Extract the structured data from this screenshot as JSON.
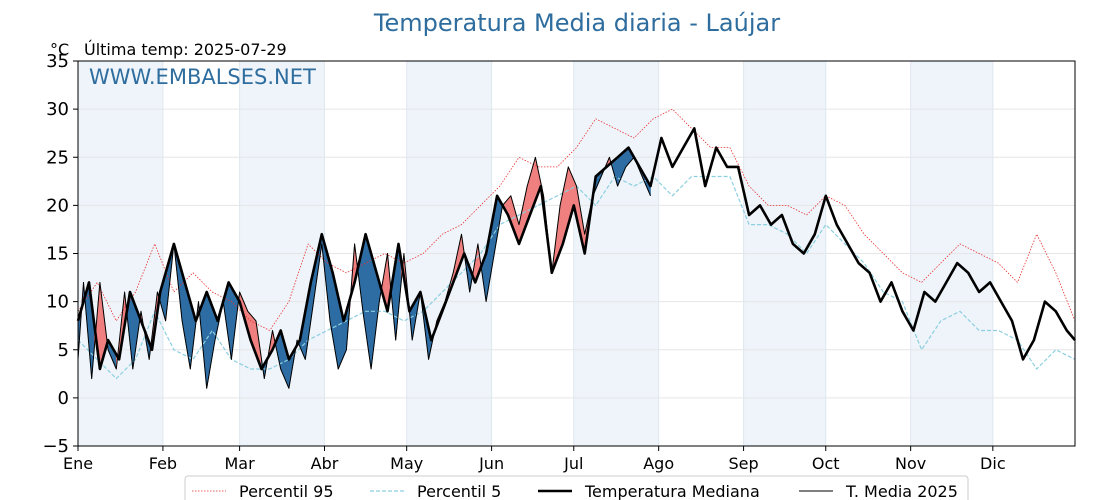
{
  "chart_data": {
    "type": "line",
    "title": "Temperatura Media diaria - Laújar",
    "unit_label": "°C",
    "subtitle": "Última temp: 2025-07-29",
    "watermark": "WWW.EMBALSES.NET",
    "ylim": [
      -5,
      35
    ],
    "yticks": [
      -5,
      0,
      5,
      10,
      15,
      20,
      25,
      30,
      35
    ],
    "ytick_labels": [
      "−5",
      "0",
      "5",
      "10",
      "15",
      "20",
      "25",
      "30",
      "35"
    ],
    "xlim_day": [
      1,
      365
    ],
    "month_ticks": [
      {
        "label": "Ene",
        "day": 1
      },
      {
        "label": "Feb",
        "day": 32
      },
      {
        "label": "Mar",
        "day": 60
      },
      {
        "label": "Abr",
        "day": 91
      },
      {
        "label": "May",
        "day": 121
      },
      {
        "label": "Jun",
        "day": 152
      },
      {
        "label": "Jul",
        "day": 182
      },
      {
        "label": "Ago",
        "day": 213
      },
      {
        "label": "Sep",
        "day": 244
      },
      {
        "label": "Oct",
        "day": 274
      },
      {
        "label": "Nov",
        "day": 305
      },
      {
        "label": "Dic",
        "day": 335
      }
    ],
    "last_day_2025": 210,
    "grid": true,
    "legend_position": "bottom",
    "colors": {
      "p95": "#e8312f",
      "p5": "#8ccfe0",
      "median": "#000000",
      "current": "#000000",
      "above": "#f08080",
      "below": "#2e6da4",
      "band": "#eef4fa",
      "title": "#2e6d9e"
    },
    "series": [
      {
        "key": "p95",
        "name": "Percentil 95",
        "style": "dotted",
        "points": [
          [
            1,
            9
          ],
          [
            8,
            12
          ],
          [
            15,
            8
          ],
          [
            22,
            11
          ],
          [
            29,
            16
          ],
          [
            36,
            11
          ],
          [
            43,
            13
          ],
          [
            50,
            11
          ],
          [
            57,
            10
          ],
          [
            64,
            8
          ],
          [
            71,
            7
          ],
          [
            78,
            10
          ],
          [
            85,
            16
          ],
          [
            92,
            14
          ],
          [
            99,
            13
          ],
          [
            106,
            14
          ],
          [
            113,
            15
          ],
          [
            120,
            14
          ],
          [
            127,
            15
          ],
          [
            134,
            17
          ],
          [
            141,
            18
          ],
          [
            148,
            20
          ],
          [
            155,
            22
          ],
          [
            162,
            25
          ],
          [
            169,
            24
          ],
          [
            176,
            24
          ],
          [
            183,
            26
          ],
          [
            190,
            29
          ],
          [
            197,
            28
          ],
          [
            204,
            27
          ],
          [
            211,
            29
          ],
          [
            218,
            30
          ],
          [
            225,
            28
          ],
          [
            232,
            26
          ],
          [
            239,
            26
          ],
          [
            246,
            22
          ],
          [
            253,
            20
          ],
          [
            260,
            20
          ],
          [
            267,
            19
          ],
          [
            274,
            21
          ],
          [
            281,
            20
          ],
          [
            288,
            17
          ],
          [
            295,
            15
          ],
          [
            302,
            13
          ],
          [
            309,
            12
          ],
          [
            316,
            14
          ],
          [
            323,
            16
          ],
          [
            330,
            15
          ],
          [
            337,
            14
          ],
          [
            344,
            12
          ],
          [
            351,
            17
          ],
          [
            358,
            13
          ],
          [
            365,
            8
          ]
        ]
      },
      {
        "key": "p5",
        "name": "Percentil 5",
        "style": "dashed",
        "points": [
          [
            1,
            6
          ],
          [
            8,
            4
          ],
          [
            15,
            2
          ],
          [
            22,
            4
          ],
          [
            29,
            9
          ],
          [
            36,
            5
          ],
          [
            43,
            4
          ],
          [
            50,
            7
          ],
          [
            57,
            4
          ],
          [
            64,
            3
          ],
          [
            71,
            3
          ],
          [
            78,
            4
          ],
          [
            85,
            6
          ],
          [
            92,
            7
          ],
          [
            99,
            8
          ],
          [
            106,
            9
          ],
          [
            113,
            9
          ],
          [
            120,
            8
          ],
          [
            127,
            9
          ],
          [
            134,
            11
          ],
          [
            141,
            13
          ],
          [
            148,
            15
          ],
          [
            155,
            18
          ],
          [
            162,
            19
          ],
          [
            169,
            20
          ],
          [
            176,
            21
          ],
          [
            183,
            22
          ],
          [
            190,
            20
          ],
          [
            197,
            23
          ],
          [
            204,
            22
          ],
          [
            211,
            23
          ],
          [
            218,
            21
          ],
          [
            225,
            23
          ],
          [
            232,
            23
          ],
          [
            239,
            23
          ],
          [
            246,
            18
          ],
          [
            253,
            18
          ],
          [
            260,
            17
          ],
          [
            267,
            15
          ],
          [
            274,
            18
          ],
          [
            281,
            16
          ],
          [
            288,
            14
          ],
          [
            295,
            11
          ],
          [
            302,
            10
          ],
          [
            309,
            5
          ],
          [
            316,
            8
          ],
          [
            323,
            9
          ],
          [
            330,
            7
          ],
          [
            337,
            7
          ],
          [
            344,
            6
          ],
          [
            351,
            3
          ],
          [
            358,
            5
          ],
          [
            365,
            4
          ]
        ]
      },
      {
        "key": "median",
        "name": "Temperatura Mediana",
        "style": "thick",
        "points": [
          [
            1,
            8
          ],
          [
            5,
            12
          ],
          [
            9,
            3
          ],
          [
            12,
            6
          ],
          [
            16,
            4
          ],
          [
            20,
            11
          ],
          [
            24,
            8
          ],
          [
            28,
            5
          ],
          [
            31,
            11
          ],
          [
            36,
            16
          ],
          [
            40,
            12
          ],
          [
            44,
            8
          ],
          [
            48,
            11
          ],
          [
            52,
            8
          ],
          [
            56,
            12
          ],
          [
            60,
            10
          ],
          [
            64,
            6
          ],
          [
            68,
            3
          ],
          [
            72,
            5
          ],
          [
            75,
            7
          ],
          [
            78,
            4
          ],
          [
            82,
            6
          ],
          [
            86,
            12
          ],
          [
            90,
            17
          ],
          [
            94,
            13
          ],
          [
            98,
            8
          ],
          [
            102,
            12
          ],
          [
            106,
            17
          ],
          [
            110,
            13
          ],
          [
            114,
            9
          ],
          [
            118,
            16
          ],
          [
            122,
            9
          ],
          [
            126,
            11
          ],
          [
            130,
            6
          ],
          [
            134,
            9
          ],
          [
            138,
            12
          ],
          [
            142,
            15
          ],
          [
            146,
            12
          ],
          [
            150,
            15
          ],
          [
            154,
            21
          ],
          [
            158,
            19
          ],
          [
            162,
            16
          ],
          [
            166,
            19
          ],
          [
            170,
            22
          ],
          [
            174,
            13
          ],
          [
            178,
            16
          ],
          [
            182,
            20
          ],
          [
            186,
            15
          ],
          [
            190,
            23
          ],
          [
            194,
            24
          ],
          [
            198,
            25
          ],
          [
            202,
            26
          ],
          [
            206,
            24
          ],
          [
            210,
            22
          ],
          [
            214,
            27
          ],
          [
            218,
            24
          ],
          [
            222,
            26
          ],
          [
            226,
            28
          ],
          [
            230,
            22
          ],
          [
            234,
            26
          ],
          [
            238,
            24
          ],
          [
            242,
            24
          ],
          [
            246,
            19
          ],
          [
            250,
            20
          ],
          [
            254,
            18
          ],
          [
            258,
            19
          ],
          [
            262,
            16
          ],
          [
            266,
            15
          ],
          [
            270,
            17
          ],
          [
            274,
            21
          ],
          [
            278,
            18
          ],
          [
            282,
            16
          ],
          [
            286,
            14
          ],
          [
            290,
            13
          ],
          [
            294,
            10
          ],
          [
            298,
            12
          ],
          [
            302,
            9
          ],
          [
            306,
            7
          ],
          [
            310,
            11
          ],
          [
            314,
            10
          ],
          [
            318,
            12
          ],
          [
            322,
            14
          ],
          [
            326,
            13
          ],
          [
            330,
            11
          ],
          [
            334,
            12
          ],
          [
            338,
            10
          ],
          [
            342,
            8
          ],
          [
            346,
            4
          ],
          [
            350,
            6
          ],
          [
            354,
            10
          ],
          [
            358,
            9
          ],
          [
            362,
            7
          ],
          [
            365,
            6
          ]
        ]
      },
      {
        "key": "current",
        "name": "T. Media 2025",
        "style": "thin",
        "fill_against": "median",
        "points": [
          [
            1,
            4
          ],
          [
            3,
            12
          ],
          [
            6,
            2
          ],
          [
            9,
            12
          ],
          [
            12,
            5
          ],
          [
            15,
            3
          ],
          [
            18,
            11
          ],
          [
            21,
            3
          ],
          [
            24,
            9
          ],
          [
            27,
            4
          ],
          [
            30,
            11
          ],
          [
            33,
            8
          ],
          [
            36,
            16
          ],
          [
            39,
            8
          ],
          [
            42,
            3
          ],
          [
            45,
            10
          ],
          [
            48,
            1
          ],
          [
            51,
            6
          ],
          [
            54,
            10
          ],
          [
            57,
            4
          ],
          [
            60,
            11
          ],
          [
            63,
            9
          ],
          [
            66,
            8
          ],
          [
            69,
            2
          ],
          [
            72,
            7
          ],
          [
            75,
            3
          ],
          [
            78,
            1
          ],
          [
            81,
            6
          ],
          [
            84,
            4
          ],
          [
            87,
            10
          ],
          [
            90,
            16
          ],
          [
            93,
            8
          ],
          [
            96,
            3
          ],
          [
            99,
            5
          ],
          [
            102,
            16
          ],
          [
            105,
            9
          ],
          [
            108,
            3
          ],
          [
            111,
            10
          ],
          [
            114,
            15
          ],
          [
            117,
            6
          ],
          [
            120,
            15
          ],
          [
            123,
            6
          ],
          [
            126,
            11
          ],
          [
            129,
            4
          ],
          [
            132,
            8
          ],
          [
            135,
            10
          ],
          [
            138,
            13
          ],
          [
            141,
            17
          ],
          [
            144,
            11
          ],
          [
            147,
            16
          ],
          [
            150,
            10
          ],
          [
            153,
            15
          ],
          [
            156,
            20
          ],
          [
            159,
            21
          ],
          [
            162,
            18
          ],
          [
            165,
            22
          ],
          [
            168,
            25
          ],
          [
            171,
            21
          ],
          [
            174,
            13
          ],
          [
            177,
            20
          ],
          [
            180,
            24
          ],
          [
            183,
            22
          ],
          [
            186,
            17
          ],
          [
            189,
            21
          ],
          [
            192,
            23
          ],
          [
            195,
            25
          ],
          [
            198,
            22
          ],
          [
            201,
            24
          ],
          [
            204,
            25
          ],
          [
            207,
            23
          ],
          [
            210,
            21
          ]
        ]
      }
    ]
  }
}
